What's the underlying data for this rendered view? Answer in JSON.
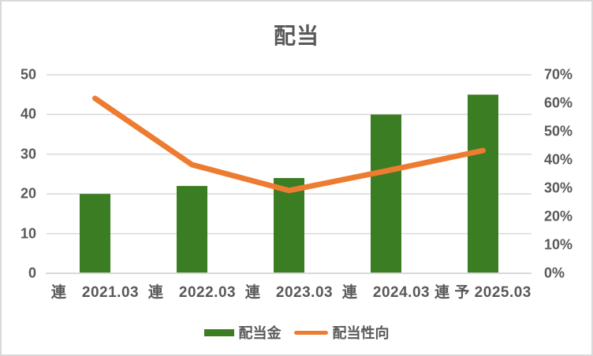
{
  "chart_data": {
    "type": "bar",
    "title": "配当",
    "categories": [
      "連　2021.03",
      "連　2022.03",
      "連　2023.03",
      "連　2024.03",
      "連 予 2025.03"
    ],
    "series": [
      {
        "name": "配当金",
        "type": "bar",
        "axis": "left",
        "color": "#3A7D22",
        "values": [
          20,
          22,
          24,
          40,
          45
        ]
      },
      {
        "name": "配当性向",
        "type": "line",
        "axis": "right",
        "color": "#ED7C31",
        "values": [
          61.7,
          38.3,
          29.2,
          36.1,
          43.3
        ]
      }
    ],
    "left_axis": {
      "min": 0,
      "max": 50,
      "ticks": [
        0,
        10,
        20,
        30,
        40,
        50
      ]
    },
    "right_axis": {
      "min": 0,
      "max": 70,
      "ticks": [
        0,
        10,
        20,
        30,
        40,
        50,
        60,
        70
      ],
      "tick_suffix": "%"
    },
    "grid": true,
    "legend_position": "bottom",
    "colors": {
      "bar": "#3A7D22",
      "line": "#ED7C31",
      "text": "#595959",
      "gridline": "#D9D9D9",
      "background": "#FFFFFF",
      "border": "#D9D9D9"
    }
  }
}
